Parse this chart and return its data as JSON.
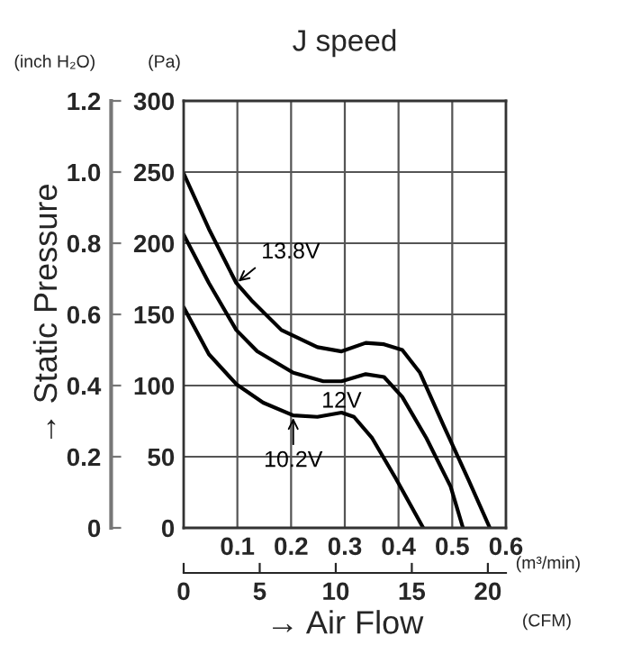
{
  "chart_data": {
    "type": "line",
    "title": "J speed",
    "xlabel": "→ Air Flow",
    "ylabel": "(Pa)",
    "y2label": "(inch H₂O)",
    "annotations": [
      "→ Static Pressure",
      "(m³/min)",
      "(CFM)"
    ],
    "xlim": [
      0,
      0.6
    ],
    "xticks": [
      0.1,
      0.2,
      0.3,
      0.4,
      0.5,
      0.6
    ],
    "ylim": [
      0,
      300
    ],
    "yticks": [
      0,
      50,
      100,
      150,
      200,
      250,
      300
    ],
    "y2lim": [
      0,
      1.2
    ],
    "y2ticks": [
      0,
      0.2,
      0.4,
      0.6,
      0.8,
      {
        "value": 1.0,
        "label": "1.0"
      },
      1.2
    ],
    "x2lim": [
      0,
      21.19
    ],
    "x2ticks": [
      0,
      5,
      10,
      15,
      20
    ],
    "grid": true,
    "marker": "none",
    "line_style": "solid",
    "series": [
      {
        "name": "13.8V",
        "color": "#000000",
        "x": [
          0,
          0.047,
          0.098,
          0.126,
          0.182,
          0.249,
          0.294,
          0.339,
          0.373,
          0.407,
          0.44,
          0.485,
          0.53,
          0.57
        ],
        "values": [
          249,
          210,
          172,
          160,
          139,
          127,
          124,
          130,
          129,
          125,
          109,
          71,
          34,
          0
        ]
      },
      {
        "name": "12V",
        "color": "#000000",
        "x": [
          0,
          0.047,
          0.098,
          0.137,
          0.204,
          0.26,
          0.294,
          0.339,
          0.373,
          0.407,
          0.452,
          0.497,
          0.52
        ],
        "values": [
          206,
          172,
          139,
          124,
          109,
          103,
          103,
          108,
          106,
          92,
          63,
          29,
          0
        ]
      },
      {
        "name": "10.2V",
        "color": "#000000",
        "x": [
          0,
          0.047,
          0.098,
          0.148,
          0.204,
          0.249,
          0.294,
          0.317,
          0.351,
          0.396,
          0.446
        ],
        "values": [
          155,
          122,
          101,
          88,
          79,
          78,
          81,
          78,
          63,
          34,
          0
        ]
      }
    ]
  }
}
